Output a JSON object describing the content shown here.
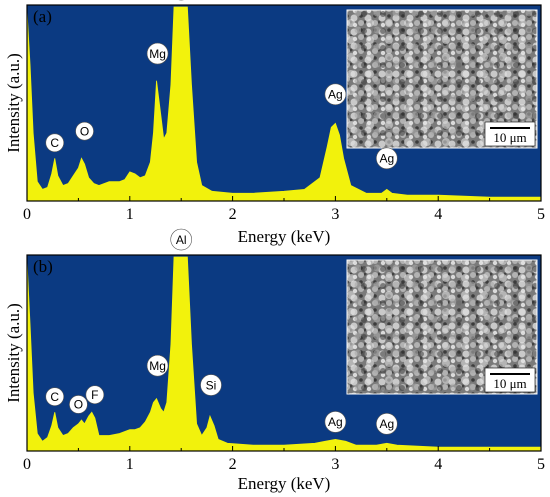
{
  "chart_data": [
    {
      "type": "area",
      "panel_label": "(a)",
      "xlabel": "Energy (keV)",
      "ylabel": "Intensity (a.u.)",
      "xlim": [
        0,
        5
      ],
      "xticks": [
        "0",
        "1",
        "2",
        "3",
        "4",
        "5"
      ],
      "background_color": "#0b3a82",
      "fill_color": "#f2f20c",
      "spectrum": {
        "x": [
          0.0,
          0.03,
          0.06,
          0.1,
          0.15,
          0.2,
          0.24,
          0.27,
          0.3,
          0.35,
          0.4,
          0.45,
          0.5,
          0.53,
          0.56,
          0.6,
          0.65,
          0.7,
          0.8,
          0.9,
          0.95,
          1.0,
          1.05,
          1.1,
          1.15,
          1.2,
          1.23,
          1.26,
          1.3,
          1.33,
          1.36,
          1.4,
          1.43,
          1.46,
          1.48,
          1.5,
          1.53,
          1.56,
          1.6,
          1.65,
          1.7,
          1.8,
          2.0,
          2.2,
          2.5,
          2.7,
          2.85,
          2.92,
          2.96,
          3.0,
          3.04,
          3.08,
          3.15,
          3.3,
          3.45,
          3.5,
          3.55,
          3.7,
          4.0,
          4.5,
          5.0
        ],
        "y": [
          98,
          70,
          35,
          10,
          6,
          7,
          14,
          22,
          13,
          8,
          9,
          13,
          17,
          22,
          19,
          12,
          9,
          8,
          10,
          10,
          11,
          15,
          14,
          12,
          13,
          20,
          35,
          62,
          45,
          32,
          35,
          60,
          100,
          100,
          100,
          100,
          100,
          100,
          60,
          20,
          8,
          5,
          4,
          4,
          5,
          6,
          12,
          28,
          38,
          40,
          34,
          22,
          8,
          4,
          4,
          6,
          4,
          3,
          3,
          2,
          2
        ]
      },
      "peak_labels": [
        {
          "label": "C",
          "x": 0.27,
          "y": 30
        },
        {
          "label": "O",
          "x": 0.56,
          "y": 36
        },
        {
          "label": "Mg",
          "x": 1.27,
          "y": 76
        },
        {
          "label": "Al",
          "x": 1.5,
          "y": 109
        },
        {
          "label": "Ag",
          "x": 3.0,
          "y": 55
        },
        {
          "label": "Ag",
          "x": 3.5,
          "y": 22
        }
      ],
      "inset": {
        "scale_bar": "10 μm"
      }
    },
    {
      "type": "area",
      "panel_label": "(b)",
      "xlabel": "Energy (keV)",
      "ylabel": "Intensity (a.u.)",
      "xlim": [
        0,
        5
      ],
      "xticks": [
        "0",
        "1",
        "2",
        "3",
        "4",
        "5"
      ],
      "background_color": "#0b3a82",
      "fill_color": "#f2f20c",
      "spectrum": {
        "x": [
          0.0,
          0.03,
          0.06,
          0.1,
          0.15,
          0.2,
          0.24,
          0.27,
          0.3,
          0.35,
          0.4,
          0.45,
          0.5,
          0.53,
          0.56,
          0.6,
          0.63,
          0.66,
          0.7,
          0.8,
          0.9,
          1.0,
          1.05,
          1.1,
          1.15,
          1.2,
          1.23,
          1.26,
          1.3,
          1.33,
          1.36,
          1.4,
          1.43,
          1.46,
          1.48,
          1.5,
          1.53,
          1.56,
          1.6,
          1.65,
          1.7,
          1.75,
          1.78,
          1.82,
          1.86,
          1.95,
          2.2,
          2.5,
          2.8,
          2.9,
          3.0,
          3.1,
          3.2,
          3.4,
          3.5,
          3.6,
          4.0,
          4.5,
          5.0
        ],
        "y": [
          98,
          65,
          30,
          9,
          5,
          7,
          13,
          20,
          12,
          8,
          9,
          12,
          14,
          16,
          14,
          18,
          20,
          17,
          8,
          8,
          9,
          11,
          11,
          12,
          15,
          20,
          25,
          27,
          22,
          20,
          25,
          55,
          100,
          100,
          100,
          100,
          100,
          100,
          55,
          14,
          8,
          12,
          18,
          13,
          6,
          4,
          3,
          3,
          4,
          5,
          6,
          5,
          3,
          3,
          4,
          3,
          2,
          2,
          2
        ]
      },
      "peak_labels": [
        {
          "label": "C",
          "x": 0.27,
          "y": 28
        },
        {
          "label": "O",
          "x": 0.5,
          "y": 24
        },
        {
          "label": "F",
          "x": 0.66,
          "y": 29
        },
        {
          "label": "Mg",
          "x": 1.27,
          "y": 44
        },
        {
          "label": "Al",
          "x": 1.5,
          "y": 109
        },
        {
          "label": "Si",
          "x": 1.79,
          "y": 34
        },
        {
          "label": "Ag",
          "x": 3.0,
          "y": 15
        },
        {
          "label": "Ag",
          "x": 3.5,
          "y": 14
        }
      ],
      "inset": {
        "scale_bar": "10 μm"
      }
    }
  ]
}
